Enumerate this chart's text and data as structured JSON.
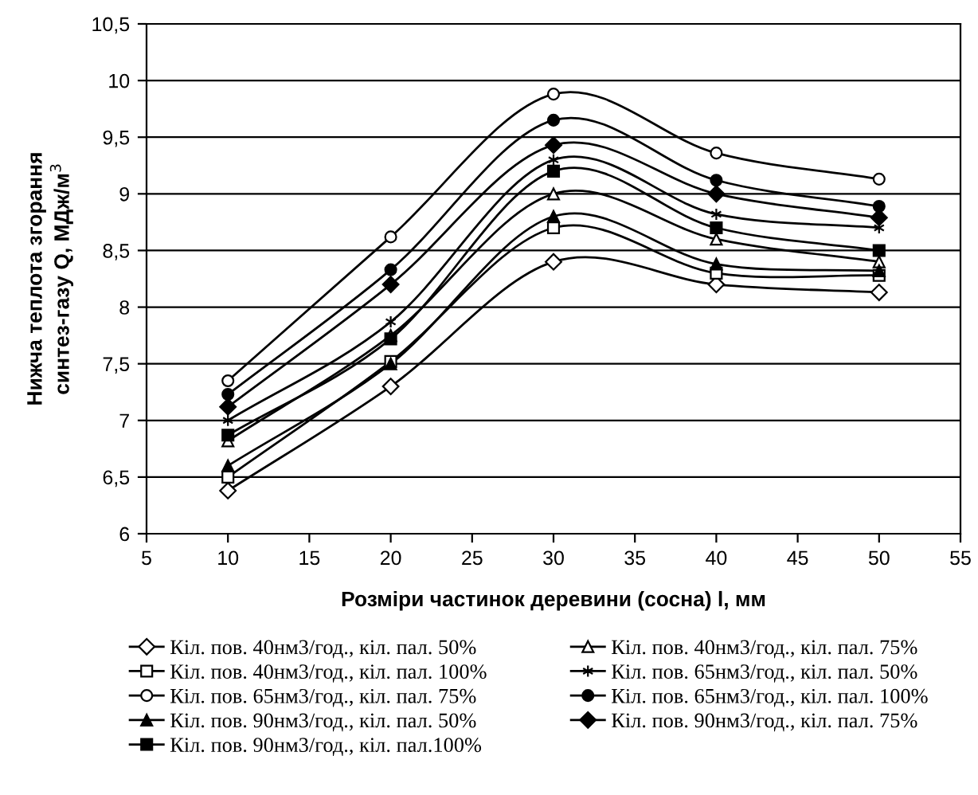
{
  "chart_data": {
    "type": "line",
    "xlabel": "Розміри частинок деревини (сосна) l, мм",
    "ylabel": "Нижча теплота згорання\nсинтез-газу Q, МДж/м$^{3}$",
    "x": [
      10,
      20,
      30,
      40,
      50
    ],
    "xlim": [
      5,
      55
    ],
    "xticks": [
      5,
      10,
      15,
      20,
      25,
      30,
      35,
      40,
      45,
      50,
      55
    ],
    "ylim": [
      6,
      10.5
    ],
    "yticks": [
      6,
      {
        "value": 6.5,
        "label": "6,5"
      },
      7,
      {
        "value": 7.5,
        "label": "7,5"
      },
      8,
      {
        "value": 8.5,
        "label": "8,5"
      },
      9,
      {
        "value": 9.5,
        "label": "9,5"
      },
      10,
      {
        "value": 10.5,
        "label": "10,5"
      }
    ],
    "grid": "y",
    "legend": "bottom",
    "line_style": "solid",
    "series": [
      {
        "name": "Кіл. пов. 40нм3/год., кіл. пал. 50%",
        "color": "#ffffff",
        "marker": "diamond",
        "values": [
          6.38,
          7.3,
          8.4,
          8.2,
          8.13
        ]
      },
      {
        "name": "Кіл. пов. 40нм3/год., кіл. пал. 75%",
        "color": "#ffffff",
        "marker": "triangle",
        "values": [
          6.82,
          7.75,
          9.0,
          8.6,
          8.4
        ]
      },
      {
        "name": "Кіл. пов. 40нм3/год., кіл. пал. 100%",
        "color": "#ffffff",
        "marker": "square",
        "values": [
          6.5,
          7.52,
          8.7,
          8.3,
          8.28
        ]
      },
      {
        "name": "Кіл. пов. 65нм3/год., кіл. пал. 50%",
        "color": "#000000",
        "marker": "cross",
        "values": [
          7.0,
          7.87,
          9.3,
          8.82,
          8.7
        ]
      },
      {
        "name": "Кіл. пов. 65нм3/год., кіл. пал. 75%",
        "color": "#ffffff",
        "marker": "circle",
        "values": [
          7.35,
          8.62,
          9.88,
          9.36,
          9.13
        ]
      },
      {
        "name": "Кіл. пов. 65нм3/год., кіл. пал. 100%",
        "color": "#000000",
        "marker": "circle",
        "values": [
          7.23,
          8.33,
          9.65,
          9.12,
          8.89
        ]
      },
      {
        "name": "Кіл. пов. 90нм3/год., кіл. пал. 50%",
        "color": "#000000",
        "marker": "triangle",
        "values": [
          6.6,
          7.5,
          8.8,
          8.38,
          8.32
        ]
      },
      {
        "name": "Кіл. пов. 90нм3/год., кіл. пал. 75%",
        "color": "#000000",
        "marker": "diamond",
        "values": [
          7.12,
          8.2,
          9.43,
          9.0,
          8.79
        ]
      },
      {
        "name": "Кіл. пов. 90нм3/год., кіл. пал.100%",
        "color": "#000000",
        "marker": "square",
        "values": [
          6.87,
          7.72,
          9.2,
          8.7,
          8.5
        ]
      }
    ]
  }
}
